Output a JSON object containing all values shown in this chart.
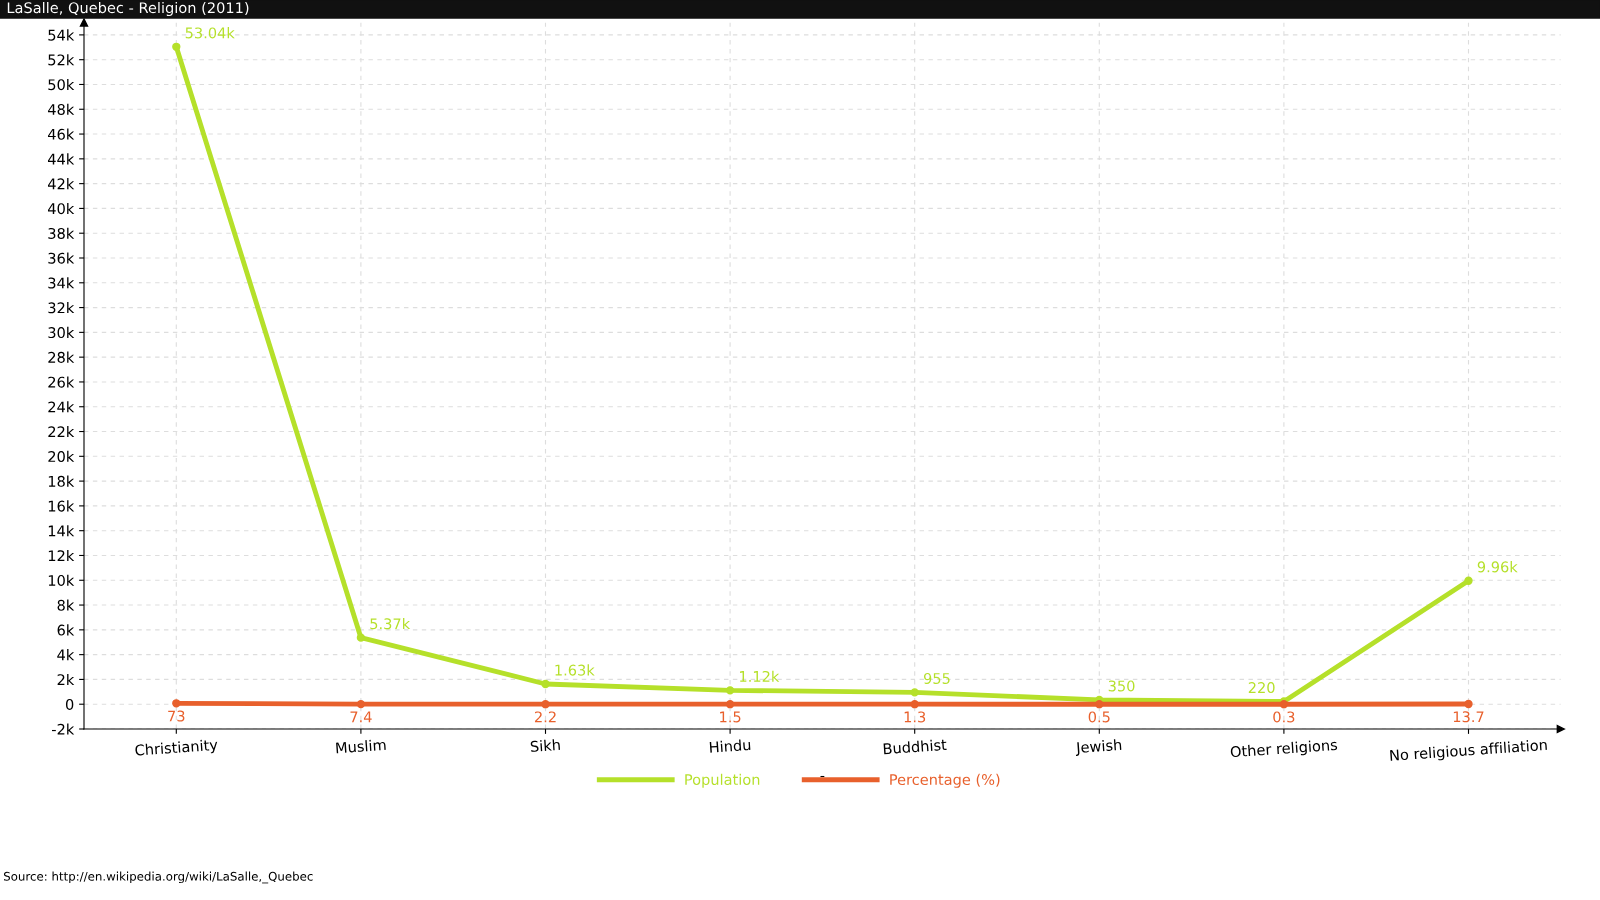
{
  "chart_data": {
    "type": "line",
    "title": "LaSalle, Quebec - Religion (2011)",
    "xlabel": "-",
    "categories": [
      "Christianity",
      "Muslim",
      "Sikh",
      "Hindu",
      "Buddhist",
      "Jewish",
      "Other religions",
      "No religious affiliation"
    ],
    "series": [
      {
        "name": "Population",
        "color": "#b5e02a",
        "values": [
          53040,
          5370,
          1630,
          1120,
          955,
          350,
          220,
          9960
        ],
        "value_labels": [
          "53.04k",
          "5.37k",
          "1.63k",
          "1.12k",
          "955",
          "350",
          "220",
          "9.96k"
        ]
      },
      {
        "name": "Percentage (%)",
        "color": "#e8602c",
        "values": [
          73,
          7.4,
          2.2,
          1.5,
          1.3,
          0.5,
          0.3,
          13.7
        ],
        "value_labels": [
          "73",
          "7.4",
          "2.2",
          "1.5",
          "1.3",
          "0.5",
          "0.3",
          "13.7"
        ]
      }
    ],
    "ylim": [
      -2000,
      55000
    ],
    "yticks": [
      {
        "value": -2000,
        "label": "-2k"
      },
      0,
      {
        "value": 2000,
        "label": "2k"
      },
      {
        "value": 4000,
        "label": "4k"
      },
      {
        "value": 6000,
        "label": "6k"
      },
      {
        "value": 8000,
        "label": "8k"
      },
      {
        "value": 10000,
        "label": "10k"
      },
      {
        "value": 12000,
        "label": "12k"
      },
      {
        "value": 14000,
        "label": "14k"
      },
      {
        "value": 16000,
        "label": "16k"
      },
      {
        "value": 18000,
        "label": "18k"
      },
      {
        "value": 20000,
        "label": "20k"
      },
      {
        "value": 22000,
        "label": "22k"
      },
      {
        "value": 24000,
        "label": "24k"
      },
      {
        "value": 26000,
        "label": "26k"
      },
      {
        "value": 28000,
        "label": "28k"
      },
      {
        "value": 30000,
        "label": "30k"
      },
      {
        "value": 32000,
        "label": "32k"
      },
      {
        "value": 34000,
        "label": "34k"
      },
      {
        "value": 36000,
        "label": "36k"
      },
      {
        "value": 38000,
        "label": "38k"
      },
      {
        "value": 40000,
        "label": "40k"
      },
      {
        "value": 42000,
        "label": "42k"
      },
      {
        "value": 44000,
        "label": "44k"
      },
      {
        "value": 46000,
        "label": "46k"
      },
      {
        "value": 48000,
        "label": "48k"
      },
      {
        "value": 50000,
        "label": "50k"
      },
      {
        "value": 52000,
        "label": "52k"
      },
      {
        "value": 54000,
        "label": "54k"
      }
    ],
    "grid": true,
    "legend": "bottom",
    "marker": "circle",
    "line_style": "solid",
    "annotations": [
      "Source: http://en.wikipedia.org/wiki/LaSalle,_Quebec"
    ]
  }
}
